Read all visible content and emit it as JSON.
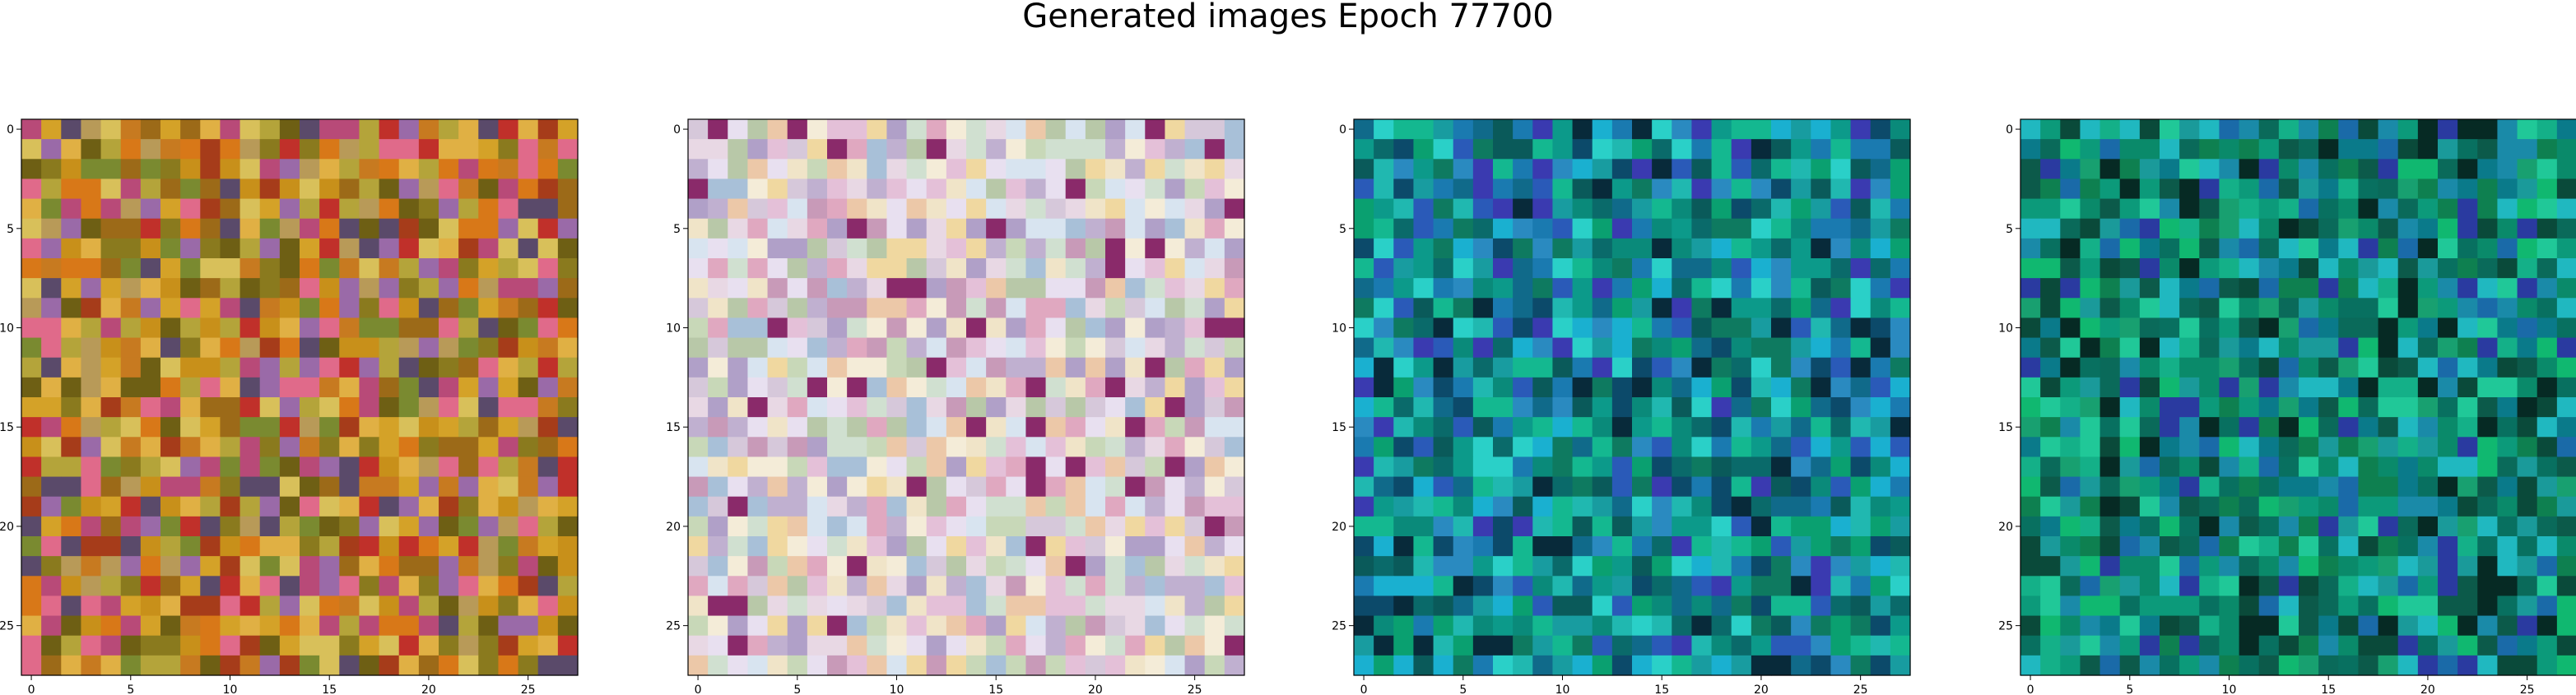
{
  "figure": {
    "title": "Generated images Epoch 77700"
  },
  "chart_data": [
    {
      "type": "heatmap",
      "grid_size": [
        28,
        28
      ],
      "palette": "warm-olive",
      "colors": [
        "#c8901a",
        "#b4a43a",
        "#8a7a1e",
        "#d4a228",
        "#9c6a18",
        "#c77a20",
        "#b89a58",
        "#6e5f14",
        "#e0b044",
        "#a63c1a",
        "#7a8a30",
        "#d87818",
        "#b84a78",
        "#5a4a6a",
        "#d8c05a",
        "#c0302a",
        "#9a6aa8",
        "#e06a8a"
      ],
      "x_ticks": [
        0,
        5,
        10,
        15,
        20,
        25
      ],
      "y_ticks": [
        0,
        5,
        10,
        15,
        20,
        25
      ],
      "xlim": [
        -0.5,
        27.5
      ],
      "ylim": [
        27.5,
        -0.5
      ]
    },
    {
      "type": "heatmap",
      "grid_size": [
        28,
        28
      ],
      "palette": "pastel",
      "colors": [
        "#e8d8e4",
        "#d6c8da",
        "#f0e4c8",
        "#c8d8b8",
        "#e4c0d8",
        "#d8e4f0",
        "#f4ecd8",
        "#c0b0d0",
        "#e0a8c0",
        "#b8c8a8",
        "#f0d8a0",
        "#a8c0d8",
        "#e8e0f0",
        "#c89ab8",
        "#8a2a6a",
        "#d0e0d0",
        "#ecc8a8",
        "#b0a0c8"
      ],
      "x_ticks": [
        0,
        5,
        10,
        15,
        20,
        25
      ],
      "y_ticks": [
        0,
        5,
        10,
        15,
        20,
        25
      ],
      "xlim": [
        -0.5,
        27.5
      ],
      "ylim": [
        27.5,
        -0.5
      ]
    },
    {
      "type": "heatmap",
      "grid_size": [
        28,
        28
      ],
      "palette": "teal-blue",
      "colors": [
        "#0a8a7a",
        "#189ca0",
        "#0a6a6a",
        "#20b8b0",
        "#0c9a8a",
        "#1a7ab0",
        "#0a5a5a",
        "#2ad0c8",
        "#106a8a",
        "#0aa070",
        "#2a5ab8",
        "#0c4a6a",
        "#14b890",
        "#3a3ab0",
        "#0e7a60",
        "#1ab0d0",
        "#082a3a",
        "#2a8ac0"
      ],
      "x_ticks": [
        0,
        5,
        10,
        15,
        20,
        25
      ],
      "y_ticks": [
        0,
        5,
        10,
        15,
        20,
        25
      ],
      "xlim": [
        -0.5,
        27.5
      ],
      "ylim": [
        27.5,
        -0.5
      ]
    },
    {
      "type": "heatmap",
      "grid_size": [
        28,
        28
      ],
      "palette": "teal-green",
      "colors": [
        "#0a8a6a",
        "#0c9a7a",
        "#087060",
        "#14b088",
        "#0a6a5a",
        "#1a9a9a",
        "#0c5a4a",
        "#20c898",
        "#0a7a8a",
        "#18a070",
        "#1a6aa8",
        "#0a4a3a",
        "#10b870",
        "#2a3aa0",
        "#0e8050",
        "#20b8c0",
        "#062a24",
        "#1a8aa8"
      ],
      "x_ticks": [
        0,
        5,
        10,
        15,
        20,
        25
      ],
      "y_ticks": [
        0,
        5,
        10,
        15,
        20,
        25
      ],
      "xlim": [
        -0.5,
        27.5
      ],
      "ylim": [
        27.5,
        -0.5
      ]
    }
  ]
}
